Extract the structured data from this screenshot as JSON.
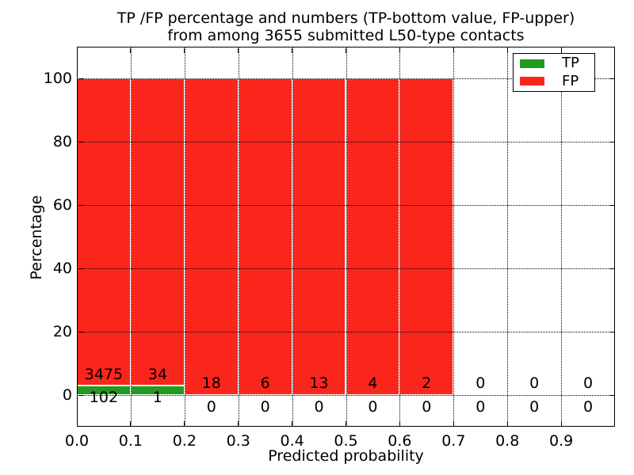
{
  "chart_data": {
    "type": "bar",
    "stacked": true,
    "title": "TP /FP percentage and numbers (TP-bottom value, FP-upper)\nfrom among 3655 submitted L50-type contacts",
    "title_lines": [
      "TP /FP percentage and numbers (TP-bottom value, FP-upper)",
      "from among 3655 submitted L50-type contacts"
    ],
    "xlabel": "Predicted probability",
    "ylabel": "Percentage",
    "xlim": [
      0.0,
      1.0
    ],
    "ylim": [
      -10,
      110
    ],
    "x_ticks": [
      "0.0",
      "0.1",
      "0.2",
      "0.3",
      "0.4",
      "0.5",
      "0.6",
      "0.7",
      "0.8",
      "0.9"
    ],
    "y_ticks": [
      "0",
      "20",
      "40",
      "60",
      "80",
      "100"
    ],
    "grid": "dotted, drawn above bars",
    "legend_position": "upper right",
    "bin_width": 0.1,
    "bin_starts": [
      0.0,
      0.1,
      0.2,
      0.3,
      0.4,
      0.5,
      0.6,
      0.7,
      0.8,
      0.9
    ],
    "series": [
      {
        "name": "TP",
        "color": "#1f9b1f",
        "counts": [
          102,
          1,
          0,
          0,
          0,
          0,
          0,
          0,
          0,
          0
        ],
        "pct": [
          2.9,
          2.9,
          0,
          0,
          0,
          0,
          0,
          0,
          0,
          0
        ]
      },
      {
        "name": "FP",
        "color": "#fa251b",
        "counts": [
          3475,
          34,
          18,
          6,
          13,
          4,
          2,
          0,
          0,
          0
        ],
        "pct": [
          97.1,
          97.1,
          100,
          100,
          100,
          100,
          100,
          0,
          0,
          0
        ]
      }
    ],
    "colors": {
      "tp": "#1f9b1f",
      "fp": "#fa251b",
      "grid": "#000000",
      "bar_edge": "#ffffff",
      "background": "#ffffff",
      "text": "#000000"
    }
  }
}
